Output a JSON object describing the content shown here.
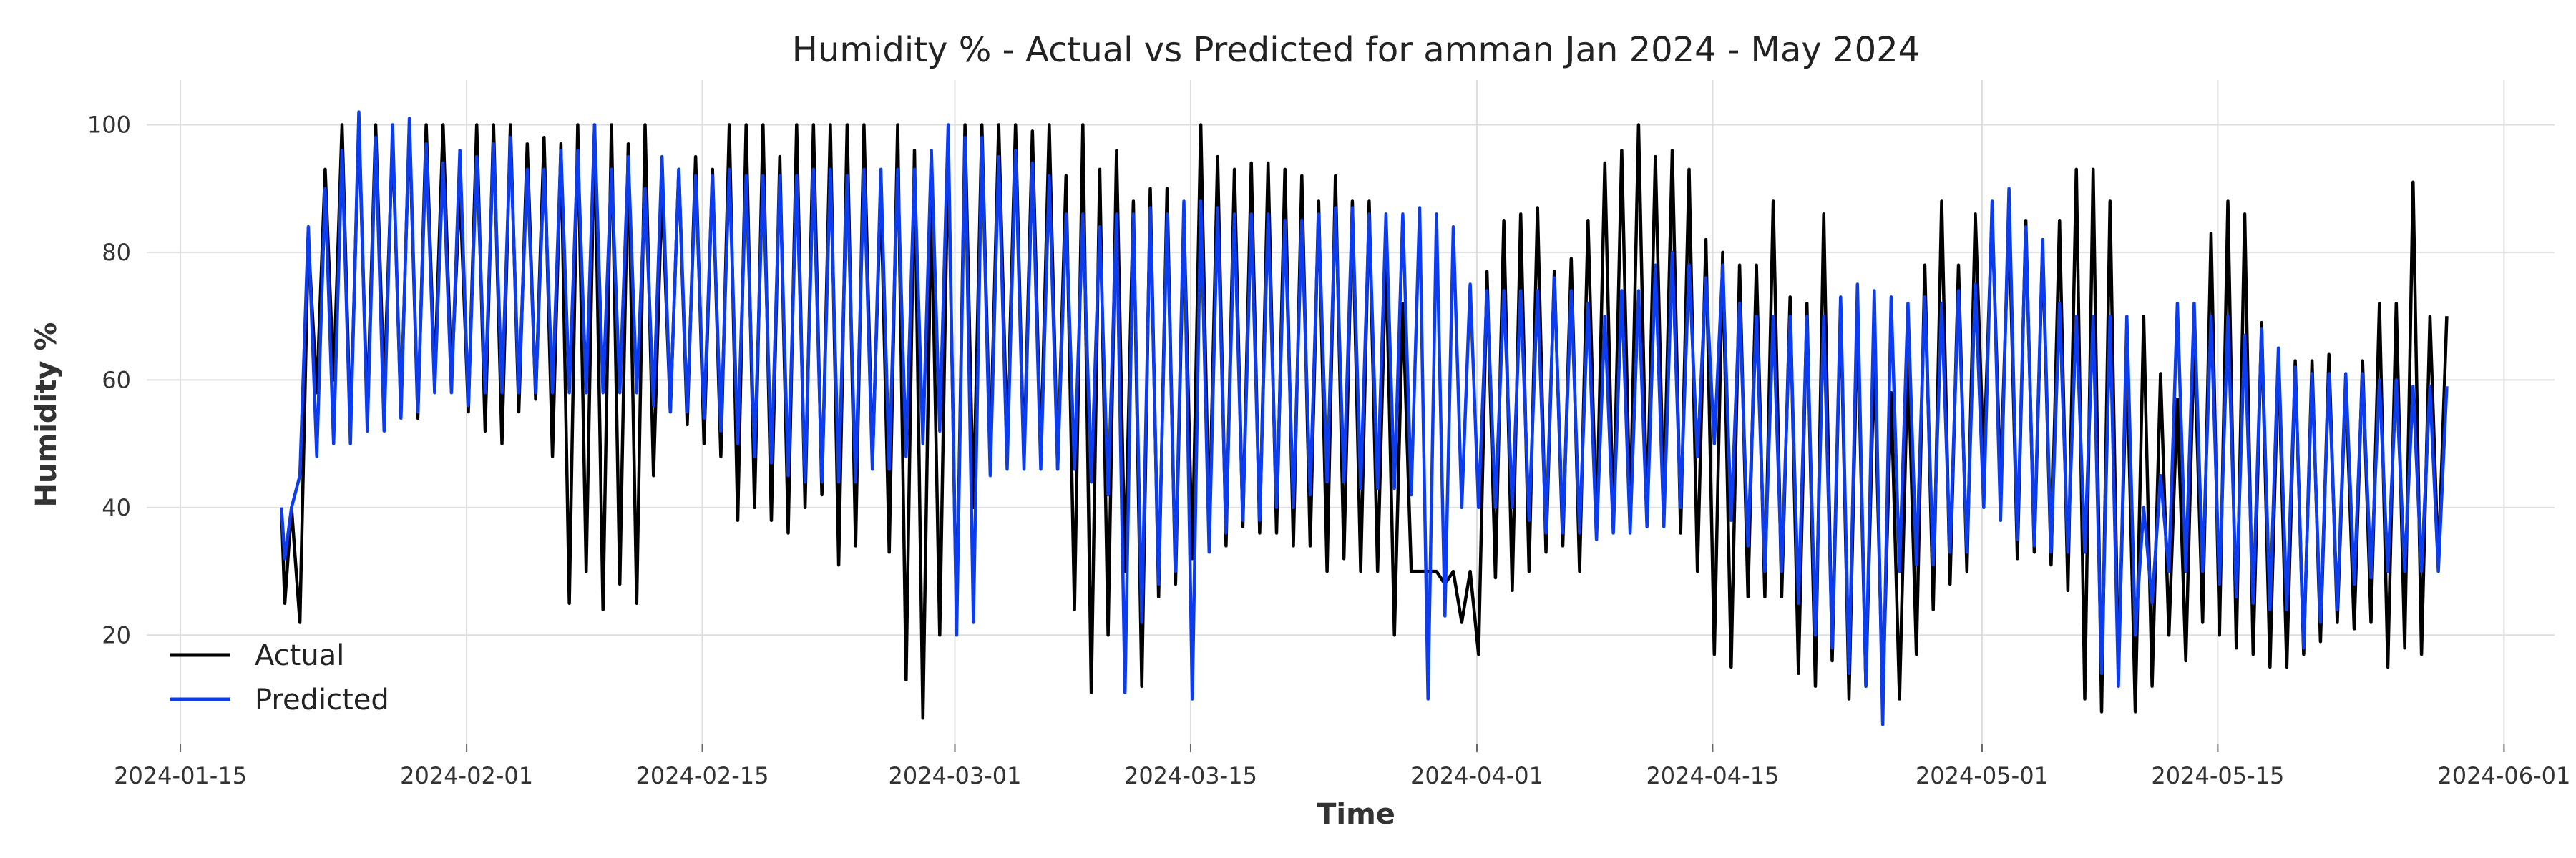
{
  "chart_data": {
    "type": "line",
    "title": "Humidity % - Actual vs Predicted for amman Jan 2024 - May 2024",
    "xlabel": "Time",
    "ylabel": "Humidity %",
    "x_type": "date",
    "xlim": [
      "2024-01-13",
      "2024-06-04"
    ],
    "ylim": [
      3,
      107
    ],
    "x_ticks": [
      "2024-01-15",
      "2024-02-01",
      "2024-02-15",
      "2024-03-01",
      "2024-03-15",
      "2024-04-01",
      "2024-04-15",
      "2024-05-01",
      "2024-05-15",
      "2024-06-01"
    ],
    "y_ticks": [
      20,
      40,
      60,
      80,
      100
    ],
    "grid": true,
    "legend": "lower-left",
    "series": [
      {
        "name": "Actual",
        "color": "#000000",
        "x": [
          "2024-01-21",
          "2024-01-22",
          "2024-01-23",
          "2024-01-24",
          "2024-01-25",
          "2024-01-26",
          "2024-01-27",
          "2024-01-28",
          "2024-01-29",
          "2024-01-30",
          "2024-01-31",
          "2024-02-01",
          "2024-02-02",
          "2024-02-03",
          "2024-02-04",
          "2024-02-05",
          "2024-02-06",
          "2024-02-07",
          "2024-02-08",
          "2024-02-09",
          "2024-02-10",
          "2024-02-11",
          "2024-02-12",
          "2024-02-13",
          "2024-02-14",
          "2024-02-15",
          "2024-02-16",
          "2024-02-17",
          "2024-02-18",
          "2024-02-19",
          "2024-02-20",
          "2024-02-21",
          "2024-02-22",
          "2024-02-23",
          "2024-02-24",
          "2024-02-25",
          "2024-02-26",
          "2024-02-27",
          "2024-02-28",
          "2024-02-29",
          "2024-03-01",
          "2024-03-02",
          "2024-03-03",
          "2024-03-04",
          "2024-03-05",
          "2024-03-06",
          "2024-03-07",
          "2024-03-08",
          "2024-03-09",
          "2024-03-10",
          "2024-03-11",
          "2024-03-12",
          "2024-03-13",
          "2024-03-14",
          "2024-03-15",
          "2024-03-16",
          "2024-03-17",
          "2024-03-18",
          "2024-03-19",
          "2024-03-20",
          "2024-03-21",
          "2024-03-22",
          "2024-03-23",
          "2024-03-24",
          "2024-03-25",
          "2024-03-26",
          "2024-03-27",
          "2024-03-28",
          "2024-03-29",
          "2024-03-30",
          "2024-03-31",
          "2024-04-01",
          "2024-04-02",
          "2024-04-03",
          "2024-04-04",
          "2024-04-05",
          "2024-04-06",
          "2024-04-07",
          "2024-04-08",
          "2024-04-09",
          "2024-04-10",
          "2024-04-11",
          "2024-04-12",
          "2024-04-13",
          "2024-04-14",
          "2024-04-15",
          "2024-04-16",
          "2024-04-17",
          "2024-04-18",
          "2024-04-19",
          "2024-04-20",
          "2024-04-21",
          "2024-04-22",
          "2024-04-23",
          "2024-04-24",
          "2024-04-25",
          "2024-04-26",
          "2024-04-27",
          "2024-04-28",
          "2024-04-29",
          "2024-04-30",
          "2024-05-01",
          "2024-05-02",
          "2024-05-03",
          "2024-05-04",
          "2024-05-05",
          "2024-05-06",
          "2024-05-07",
          "2024-05-08",
          "2024-05-09",
          "2024-05-10",
          "2024-05-11",
          "2024-05-12",
          "2024-05-13",
          "2024-05-14",
          "2024-05-15",
          "2024-05-16",
          "2024-05-17",
          "2024-05-18",
          "2024-05-19",
          "2024-05-20",
          "2024-05-21",
          "2024-05-22",
          "2024-05-23",
          "2024-05-24",
          "2024-05-25",
          "2024-05-26",
          "2024-05-27",
          "2024-05-28",
          "2024-05-29"
        ],
        "max": [
          40,
          82,
          93,
          100,
          100,
          100,
          98,
          100,
          100,
          100,
          90,
          100,
          100,
          100,
          97,
          98,
          97,
          100,
          100,
          100,
          97,
          100,
          90,
          93,
          95,
          93,
          100,
          100,
          100,
          95,
          100,
          100,
          100,
          100,
          100,
          90,
          100,
          96,
          89,
          97,
          100,
          100,
          100,
          100,
          99,
          100,
          92,
          100,
          93,
          96,
          88,
          90,
          90,
          86,
          100,
          95,
          93,
          94,
          94,
          93,
          92,
          88,
          92,
          88,
          88,
          80,
          72,
          30,
          30,
          30,
          30,
          77,
          85,
          86,
          87,
          77,
          79,
          85,
          94,
          96,
          100,
          95,
          96,
          93,
          82,
          80,
          78,
          78,
          88,
          73,
          72,
          86,
          72,
          70,
          64,
          58,
          64,
          78,
          88,
          78,
          86,
          86,
          86,
          85,
          81,
          85,
          93,
          93,
          88,
          64,
          70,
          61,
          57,
          67,
          83,
          88,
          86,
          69,
          64,
          63,
          63,
          64,
          60,
          63,
          72,
          72,
          91,
          70,
          70
        ],
        "min": [
          25,
          22,
          58,
          60,
          52,
          55,
          58,
          55,
          54,
          60,
          60,
          55,
          52,
          50,
          55,
          57,
          48,
          25,
          30,
          24,
          28,
          25,
          45,
          55,
          53,
          50,
          48,
          38,
          40,
          38,
          36,
          40,
          42,
          31,
          34,
          47,
          33,
          13,
          7,
          20,
          22,
          40,
          48,
          50,
          47,
          48,
          46,
          24,
          11,
          20,
          30,
          12,
          26,
          28,
          32,
          36,
          34,
          37,
          36,
          36,
          34,
          34,
          30,
          32,
          30,
          30,
          20,
          30,
          30,
          28,
          22,
          17,
          29,
          27,
          30,
          33,
          34,
          30,
          36,
          37,
          38,
          38,
          40,
          36,
          30,
          17,
          15,
          26,
          26,
          26,
          14,
          12,
          16,
          10,
          12,
          10,
          10,
          17,
          24,
          28,
          30,
          47,
          44,
          32,
          33,
          31,
          27,
          10,
          8,
          14,
          8,
          12,
          20,
          16,
          22,
          20,
          18,
          17,
          15,
          15,
          17,
          19,
          22,
          21,
          22,
          15,
          18,
          17,
          31
        ]
      },
      {
        "name": "Predicted",
        "color": "#0b3cf0",
        "x": [
          "2024-01-21",
          "2024-01-22",
          "2024-01-23",
          "2024-01-24",
          "2024-01-25",
          "2024-01-26",
          "2024-01-27",
          "2024-01-28",
          "2024-01-29",
          "2024-01-30",
          "2024-01-31",
          "2024-02-01",
          "2024-02-02",
          "2024-02-03",
          "2024-02-04",
          "2024-02-05",
          "2024-02-06",
          "2024-02-07",
          "2024-02-08",
          "2024-02-09",
          "2024-02-10",
          "2024-02-11",
          "2024-02-12",
          "2024-02-13",
          "2024-02-14",
          "2024-02-15",
          "2024-02-16",
          "2024-02-17",
          "2024-02-18",
          "2024-02-19",
          "2024-02-20",
          "2024-02-21",
          "2024-02-22",
          "2024-02-23",
          "2024-02-24",
          "2024-02-25",
          "2024-02-26",
          "2024-02-27",
          "2024-02-28",
          "2024-02-29",
          "2024-03-01",
          "2024-03-02",
          "2024-03-03",
          "2024-03-04",
          "2024-03-05",
          "2024-03-06",
          "2024-03-07",
          "2024-03-08",
          "2024-03-09",
          "2024-03-10",
          "2024-03-11",
          "2024-03-12",
          "2024-03-13",
          "2024-03-14",
          "2024-03-15",
          "2024-03-16",
          "2024-03-17",
          "2024-03-18",
          "2024-03-19",
          "2024-03-20",
          "2024-03-21",
          "2024-03-22",
          "2024-03-23",
          "2024-03-24",
          "2024-03-25",
          "2024-03-26",
          "2024-03-27",
          "2024-03-28",
          "2024-03-29",
          "2024-03-30",
          "2024-03-31",
          "2024-04-01",
          "2024-04-02",
          "2024-04-03",
          "2024-04-04",
          "2024-04-05",
          "2024-04-06",
          "2024-04-07",
          "2024-04-08",
          "2024-04-09",
          "2024-04-10",
          "2024-04-11",
          "2024-04-12",
          "2024-04-13",
          "2024-04-14",
          "2024-04-15",
          "2024-04-16",
          "2024-04-17",
          "2024-04-18",
          "2024-04-19",
          "2024-04-20",
          "2024-04-21",
          "2024-04-22",
          "2024-04-23",
          "2024-04-24",
          "2024-04-25",
          "2024-04-26",
          "2024-04-27",
          "2024-04-28",
          "2024-04-29",
          "2024-04-30",
          "2024-05-01",
          "2024-05-02",
          "2024-05-03",
          "2024-05-04",
          "2024-05-05",
          "2024-05-06",
          "2024-05-07",
          "2024-05-08",
          "2024-05-09",
          "2024-05-10",
          "2024-05-11",
          "2024-05-12",
          "2024-05-13",
          "2024-05-14",
          "2024-05-15",
          "2024-05-16",
          "2024-05-17",
          "2024-05-18",
          "2024-05-19",
          "2024-05-20",
          "2024-05-21",
          "2024-05-22",
          "2024-05-23",
          "2024-05-24",
          "2024-05-25",
          "2024-05-26",
          "2024-05-27",
          "2024-05-28",
          "2024-05-29"
        ],
        "max": [
          40,
          84,
          90,
          96,
          102,
          98,
          100,
          101,
          97,
          94,
          96,
          95,
          97,
          98,
          93,
          93,
          96,
          96,
          100,
          93,
          95,
          90,
          95,
          93,
          92,
          92,
          93,
          92,
          92,
          92,
          92,
          93,
          93,
          92,
          93,
          93,
          93,
          93,
          96,
          100,
          98,
          98,
          95,
          96,
          94,
          92,
          86,
          86,
          84,
          86,
          86,
          87,
          86,
          88,
          88,
          87,
          86,
          86,
          86,
          85,
          85,
          86,
          87,
          87,
          86,
          86,
          86,
          87,
          86,
          84,
          75,
          74,
          74,
          74,
          74,
          76,
          74,
          72,
          70,
          74,
          74,
          78,
          80,
          78,
          76,
          78,
          72,
          70,
          70,
          70,
          70,
          70,
          73,
          75,
          74,
          73,
          72,
          73,
          72,
          74,
          75,
          88,
          90,
          84,
          82,
          72,
          70,
          70,
          70,
          70,
          40,
          45,
          72,
          72,
          70,
          70,
          67,
          68,
          65,
          62,
          61,
          61,
          61,
          61,
          60,
          60,
          59,
          59,
          59
        ],
        "min": [
          32,
          45,
          48,
          50,
          50,
          52,
          52,
          54,
          55,
          58,
          58,
          56,
          58,
          58,
          58,
          58,
          58,
          58,
          58,
          58,
          58,
          58,
          56,
          55,
          55,
          54,
          52,
          50,
          48,
          47,
          45,
          44,
          44,
          44,
          44,
          46,
          46,
          48,
          50,
          52,
          20,
          22,
          45,
          46,
          46,
          46,
          46,
          46,
          44,
          42,
          11,
          22,
          28,
          30,
          10,
          33,
          36,
          38,
          38,
          40,
          40,
          42,
          44,
          44,
          43,
          43,
          43,
          42,
          10,
          23,
          40,
          40,
          40,
          40,
          38,
          36,
          36,
          36,
          35,
          36,
          36,
          37,
          37,
          40,
          48,
          50,
          38,
          34,
          30,
          30,
          25,
          20,
          18,
          14,
          12,
          6,
          30,
          31,
          31,
          33,
          33,
          40,
          38,
          35,
          34,
          33,
          33,
          33,
          14,
          12,
          20,
          25,
          30,
          30,
          30,
          28,
          26,
          25,
          24,
          24,
          18,
          22,
          24,
          28,
          29,
          30,
          30,
          30,
          30
        ]
      }
    ]
  }
}
